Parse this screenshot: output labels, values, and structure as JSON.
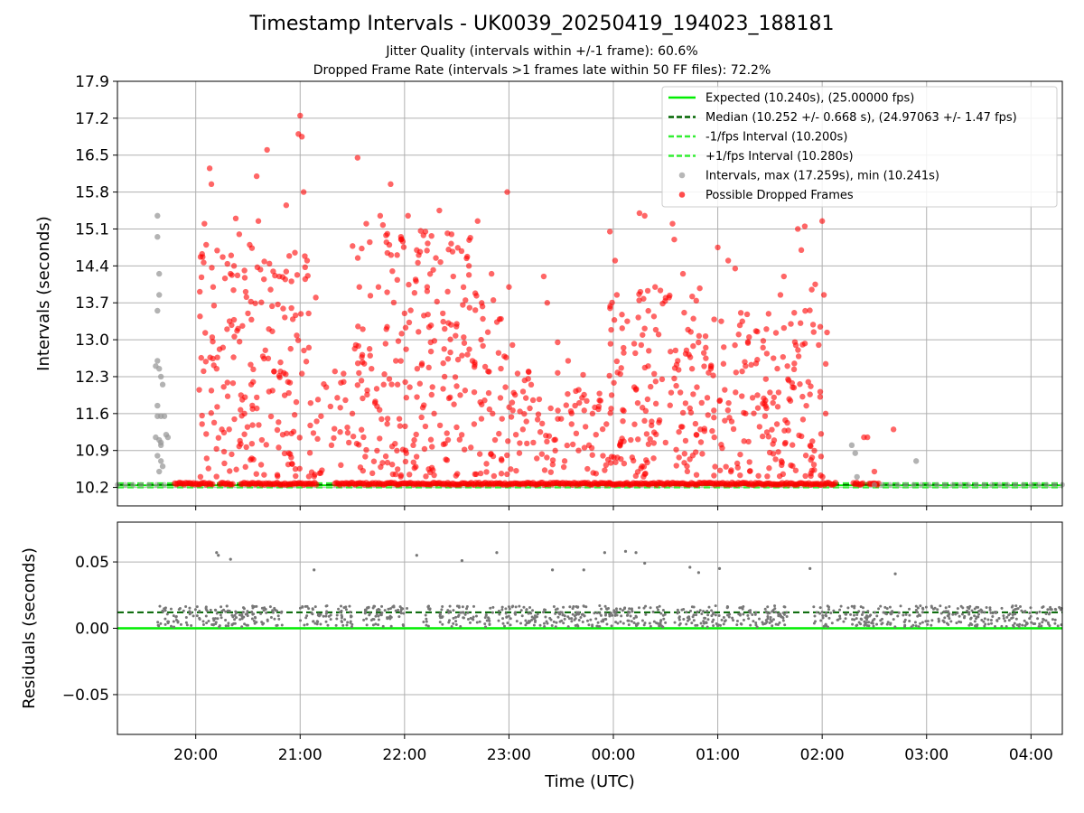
{
  "header": {
    "title": "Timestamp Intervals - UK0039_20250419_194023_188181",
    "subtitle1": "Jitter Quality (intervals within +/-1 frame): 60.6%",
    "subtitle2": "Dropped Frame Rate (intervals >1 frames late within 50 FF files): 72.2%"
  },
  "colors": {
    "expected": "#00ee00",
    "median": "#006400",
    "fps_band": "#33ee33",
    "intervals": "#999999",
    "dropped": "#ff0000",
    "residuals": "#777777",
    "grid": "#b0b0b0"
  },
  "chart_data": [
    {
      "type": "scatter",
      "ylabel": "Intervals (seconds)",
      "ylim": [
        9.85,
        17.9
      ],
      "yticks": [
        "10.2",
        "10.9",
        "11.6",
        "12.3",
        "13.0",
        "13.7",
        "14.4",
        "15.1",
        "15.8",
        "16.5",
        "17.2",
        "17.9"
      ],
      "xlim": [
        "19:15",
        "04:18"
      ],
      "grid": true,
      "legend_position": "upper right",
      "reference_lines": {
        "expected": 10.24,
        "median": 10.252,
        "minus_fps": 10.2,
        "plus_fps": 10.28
      },
      "legend": [
        "Expected (10.240s), (25.00000 fps)",
        "Median (10.252 +/- 0.668 s), (24.97063 +/- 1.47 fps)",
        "-1/fps Interval (10.200s)",
        "+1/fps Interval (10.280s)",
        "Intervals, max (17.259s), min (10.241s)",
        "Possible Dropped Frames"
      ],
      "series": [
        {
          "name": "Intervals, max (17.259s), min (10.241s)",
          "points": [
            [
              "19:38",
              15.35
            ],
            [
              "19:38",
              14.95
            ],
            [
              "19:39",
              14.25
            ],
            [
              "19:39",
              13.85
            ],
            [
              "19:38",
              13.55
            ],
            [
              "19:38",
              12.6
            ],
            [
              "19:37",
              12.5
            ],
            [
              "19:39",
              12.45
            ],
            [
              "19:40",
              12.3
            ],
            [
              "19:41",
              12.15
            ],
            [
              "19:38",
              11.75
            ],
            [
              "19:38",
              11.55
            ],
            [
              "19:40",
              11.55
            ],
            [
              "19:42",
              11.55
            ],
            [
              "19:37",
              11.15
            ],
            [
              "19:39",
              11.1
            ],
            [
              "19:40",
              11.05
            ],
            [
              "19:40",
              11.0
            ],
            [
              "19:43",
              11.2
            ],
            [
              "19:44",
              11.15
            ],
            [
              "19:38",
              10.8
            ],
            [
              "19:40",
              10.7
            ],
            [
              "19:39",
              10.5
            ],
            [
              "19:41",
              10.6
            ],
            [
              "02:17",
              11.0
            ],
            [
              "02:19",
              10.85
            ],
            [
              "02:20",
              10.4
            ],
            [
              "02:54",
              10.7
            ]
          ]
        },
        {
          "name": "Possible Dropped Frames",
          "points": [
            [
              "20:02",
              12.05
            ],
            [
              "20:05",
              15.2
            ],
            [
              "20:06",
              14.8
            ],
            [
              "20:08",
              16.25
            ],
            [
              "20:09",
              15.95
            ],
            [
              "20:10",
              14.0
            ],
            [
              "20:12",
              12.45
            ],
            [
              "20:15",
              11.3
            ],
            [
              "20:18",
              13.2
            ],
            [
              "20:20",
              14.25
            ],
            [
              "20:22",
              14.4
            ],
            [
              "20:23",
              15.3
            ],
            [
              "20:25",
              15.0
            ],
            [
              "20:26",
              11.95
            ],
            [
              "20:28",
              11.6
            ],
            [
              "20:30",
              13.5
            ],
            [
              "20:31",
              14.8
            ],
            [
              "20:33",
              12.2
            ],
            [
              "20:35",
              16.1
            ],
            [
              "20:36",
              15.25
            ],
            [
              "20:38",
              11.1
            ],
            [
              "20:40",
              12.8
            ],
            [
              "20:41",
              16.6
            ],
            [
              "20:43",
              13.95
            ],
            [
              "20:45",
              12.4
            ],
            [
              "20:48",
              14.2
            ],
            [
              "20:50",
              11.2
            ],
            [
              "20:52",
              15.55
            ],
            [
              "20:53",
              12.2
            ],
            [
              "20:55",
              13.6
            ],
            [
              "20:57",
              14.65
            ],
            [
              "20:59",
              16.9
            ],
            [
              "21:00",
              17.25
            ],
            [
              "21:01",
              16.85
            ],
            [
              "21:02",
              15.8
            ],
            [
              "21:04",
              14.5
            ],
            [
              "21:05",
              12.85
            ],
            [
              "21:06",
              11.8
            ],
            [
              "21:09",
              13.8
            ],
            [
              "21:12",
              11.55
            ],
            [
              "21:15",
              12.1
            ],
            [
              "21:18",
              11.0
            ],
            [
              "21:20",
              12.4
            ],
            [
              "21:23",
              11.25
            ],
            [
              "21:25",
              12.2
            ],
            [
              "21:28",
              11.05
            ],
            [
              "21:30",
              11.6
            ],
            [
              "21:32",
              12.9
            ],
            [
              "21:33",
              16.45
            ],
            [
              "21:34",
              14.0
            ],
            [
              "21:36",
              13.2
            ],
            [
              "21:38",
              15.2
            ],
            [
              "21:40",
              14.85
            ],
            [
              "21:41",
              12.45
            ],
            [
              "21:43",
              11.8
            ],
            [
              "21:45",
              14.0
            ],
            [
              "21:46",
              15.35
            ],
            [
              "21:48",
              12.15
            ],
            [
              "21:50",
              13.9
            ],
            [
              "21:52",
              15.95
            ],
            [
              "21:53",
              14.3
            ],
            [
              "21:55",
              12.6
            ],
            [
              "21:57",
              11.5
            ],
            [
              "21:58",
              14.9
            ],
            [
              "22:00",
              13.5
            ],
            [
              "22:02",
              15.35
            ],
            [
              "22:03",
              12.1
            ],
            [
              "22:05",
              11.0
            ],
            [
              "22:07",
              14.7
            ],
            [
              "22:08",
              13.15
            ],
            [
              "22:10",
              12.55
            ],
            [
              "22:12",
              15.05
            ],
            [
              "22:13",
              14.0
            ],
            [
              "22:15",
              12.95
            ],
            [
              "22:17",
              11.6
            ],
            [
              "22:18",
              14.55
            ],
            [
              "22:20",
              15.45
            ],
            [
              "22:22",
              13.5
            ],
            [
              "22:23",
              12.3
            ],
            [
              "22:25",
              11.1
            ],
            [
              "22:27",
              15.0
            ],
            [
              "22:28",
              14.2
            ],
            [
              "22:30",
              13.3
            ],
            [
              "22:32",
              11.95
            ],
            [
              "22:33",
              12.7
            ],
            [
              "22:35",
              13.75
            ],
            [
              "22:37",
              14.4
            ],
            [
              "22:39",
              12.6
            ],
            [
              "22:40",
              11.4
            ],
            [
              "22:42",
              15.25
            ],
            [
              "22:44",
              13.0
            ],
            [
              "22:46",
              11.85
            ],
            [
              "22:48",
              12.4
            ],
            [
              "22:50",
              14.25
            ],
            [
              "22:52",
              11.1
            ],
            [
              "22:54",
              12.75
            ],
            [
              "22:56",
              11.5
            ],
            [
              "22:58",
              12.1
            ],
            [
              "22:59",
              15.8
            ],
            [
              "23:00",
              14.0
            ],
            [
              "23:02",
              12.9
            ],
            [
              "23:04",
              11.2
            ],
            [
              "23:06",
              10.85
            ],
            [
              "23:08",
              11.3
            ],
            [
              "23:10",
              11.45
            ],
            [
              "23:12",
              11.7
            ],
            [
              "23:14",
              11.05
            ],
            [
              "23:16",
              10.75
            ],
            [
              "23:18",
              11.25
            ],
            [
              "23:20",
              14.2
            ],
            [
              "23:22",
              13.7
            ],
            [
              "23:24",
              11.7
            ],
            [
              "23:26",
              11.1
            ],
            [
              "23:28",
              12.95
            ],
            [
              "23:30",
              11.5
            ],
            [
              "23:32",
              10.7
            ],
            [
              "23:34",
              12.6
            ],
            [
              "23:36",
              11.4
            ],
            [
              "23:38",
              11.75
            ],
            [
              "23:40",
              10.9
            ],
            [
              "23:42",
              11.9
            ],
            [
              "23:44",
              11.35
            ],
            [
              "23:46",
              11.0
            ],
            [
              "23:48",
              11.6
            ],
            [
              "23:50",
              11.2
            ],
            [
              "23:52",
              11.85
            ],
            [
              "23:54",
              10.8
            ],
            [
              "23:56",
              11.4
            ],
            [
              "23:58",
              15.05
            ],
            [
              "23:59",
              11.95
            ],
            [
              "00:01",
              14.5
            ],
            [
              "00:02",
              13.85
            ],
            [
              "00:04",
              12.35
            ],
            [
              "00:06",
              11.65
            ],
            [
              "00:08",
              13.35
            ],
            [
              "00:10",
              11.1
            ],
            [
              "00:12",
              12.1
            ],
            [
              "00:14",
              11.8
            ],
            [
              "00:15",
              15.4
            ],
            [
              "00:16",
              12.9
            ],
            [
              "00:18",
              15.35
            ],
            [
              "00:20",
              12.5
            ],
            [
              "00:22",
              11.45
            ],
            [
              "00:24",
              14.0
            ],
            [
              "00:26",
              13.1
            ],
            [
              "00:28",
              12.25
            ],
            [
              "00:30",
              11.05
            ],
            [
              "00:32",
              13.8
            ],
            [
              "00:34",
              15.2
            ],
            [
              "00:35",
              14.9
            ],
            [
              "00:37",
              12.6
            ],
            [
              "00:39",
              11.35
            ],
            [
              "00:40",
              14.25
            ],
            [
              "00:42",
              12.8
            ],
            [
              "00:44",
              11.7
            ],
            [
              "00:46",
              13.4
            ],
            [
              "00:48",
              12.1
            ],
            [
              "00:50",
              11.3
            ],
            [
              "00:52",
              12.75
            ],
            [
              "00:54",
              11.9
            ],
            [
              "00:56",
              12.45
            ],
            [
              "00:58",
              11.15
            ],
            [
              "01:00",
              14.75
            ],
            [
              "01:02",
              13.35
            ],
            [
              "01:04",
              12.05
            ],
            [
              "01:06",
              14.5
            ],
            [
              "01:08",
              11.45
            ],
            [
              "01:10",
              14.35
            ],
            [
              "01:12",
              13.1
            ],
            [
              "01:14",
              12.4
            ],
            [
              "01:16",
              11.6
            ],
            [
              "01:18",
              13.05
            ],
            [
              "01:20",
              11.9
            ],
            [
              "01:22",
              12.55
            ],
            [
              "01:24",
              11.35
            ],
            [
              "01:26",
              12.85
            ],
            [
              "01:28",
              11.7
            ],
            [
              "01:30",
              12.0
            ],
            [
              "01:32",
              12.65
            ],
            [
              "01:34",
              11.4
            ],
            [
              "01:36",
              13.85
            ],
            [
              "01:38",
              14.2
            ],
            [
              "01:40",
              12.5
            ],
            [
              "01:42",
              13.3
            ],
            [
              "01:44",
              12.55
            ],
            [
              "01:46",
              15.1
            ],
            [
              "01:48",
              14.7
            ],
            [
              "01:50",
              15.15
            ],
            [
              "01:52",
              12.2
            ],
            [
              "01:54",
              13.95
            ],
            [
              "01:56",
              14.05
            ],
            [
              "01:58",
              12.9
            ],
            [
              "02:00",
              15.25
            ],
            [
              "02:01",
              13.85
            ],
            [
              "02:02",
              11.6
            ],
            [
              "02:24",
              11.15
            ],
            [
              "02:26",
              11.15
            ],
            [
              "02:30",
              10.5
            ],
            [
              "02:41",
              11.3
            ]
          ]
        }
      ]
    },
    {
      "type": "scatter",
      "ylabel": "Residuals (seconds)",
      "xlabel": "Time (UTC)",
      "ylim": [
        -0.08,
        0.08
      ],
      "yticks": [
        "−0.05",
        "0.00",
        "0.05"
      ],
      "xticks": [
        "20:00",
        "21:00",
        "22:00",
        "23:00",
        "00:00",
        "01:00",
        "02:00",
        "03:00",
        "04:00"
      ],
      "grid": true,
      "reference_lines": {
        "zero": 0.0,
        "median": 0.012
      },
      "outliers": [
        [
          "20:12",
          0.057
        ],
        [
          "20:13",
          0.055
        ],
        [
          "20:20",
          0.052
        ],
        [
          "21:08",
          0.044
        ],
        [
          "22:07",
          0.055
        ],
        [
          "22:33",
          0.051
        ],
        [
          "22:53",
          0.057
        ],
        [
          "23:25",
          0.044
        ],
        [
          "23:43",
          0.044
        ],
        [
          "23:55",
          0.057
        ],
        [
          "00:07",
          0.058
        ],
        [
          "00:13",
          0.057
        ],
        [
          "00:18",
          0.049
        ],
        [
          "00:44",
          0.046
        ],
        [
          "00:49",
          0.042
        ],
        [
          "01:01",
          0.045
        ],
        [
          "01:53",
          0.045
        ],
        [
          "02:42",
          0.041
        ]
      ]
    }
  ]
}
